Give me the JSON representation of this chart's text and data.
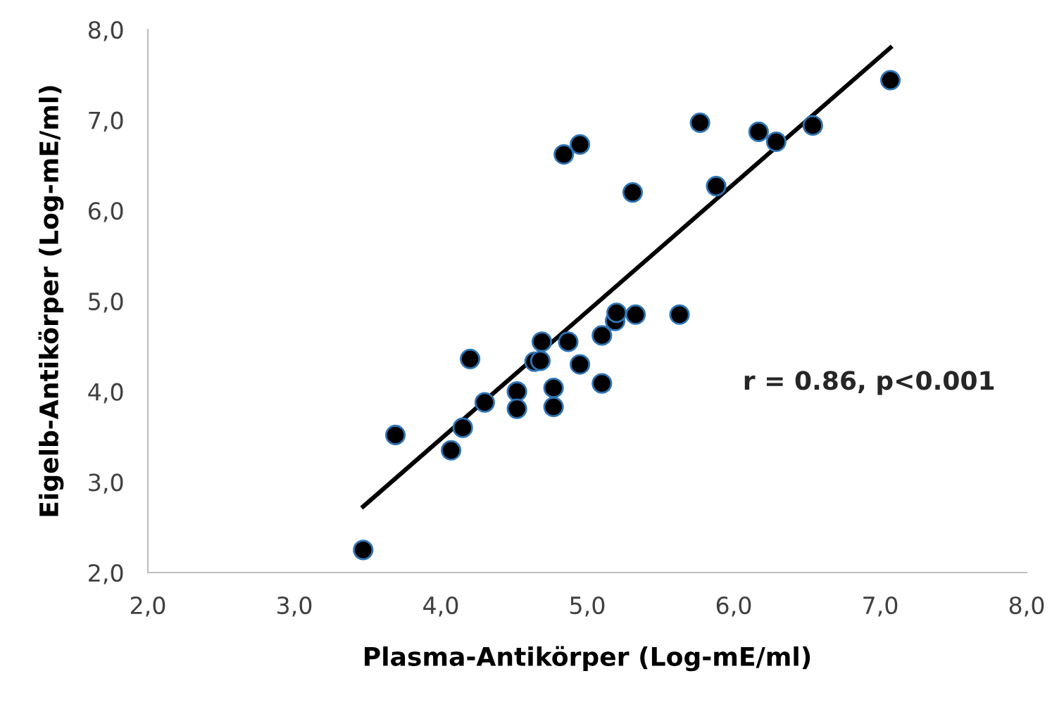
{
  "chart_data": {
    "type": "scatter",
    "xlabel": "Plasma-Antikörper (Log-mE/ml)",
    "ylabel": "Eigelb-Antikörper (Log-mE/ml)",
    "xlim": [
      2.0,
      8.0
    ],
    "ylim": [
      2.0,
      8.0
    ],
    "xticks": [
      {
        "value": 2,
        "label": "2,0"
      },
      {
        "value": 3,
        "label": "3,0"
      },
      {
        "value": 4,
        "label": "4,0"
      },
      {
        "value": 5,
        "label": "5,0"
      },
      {
        "value": 6,
        "label": "6,0"
      },
      {
        "value": 7,
        "label": "7,0"
      },
      {
        "value": 8,
        "label": "8,0"
      }
    ],
    "yticks": [
      {
        "value": 2,
        "label": "2,0"
      },
      {
        "value": 3,
        "label": "3,0"
      },
      {
        "value": 4,
        "label": "4,0"
      },
      {
        "value": 5,
        "label": "5,0"
      },
      {
        "value": 6,
        "label": "6,0"
      },
      {
        "value": 7,
        "label": "7,0"
      },
      {
        "value": 8,
        "label": "8,0"
      }
    ],
    "grid": false,
    "legend": false,
    "marker": "circle",
    "annotations": [
      "r = 0.86, p<0.001"
    ],
    "series": [
      {
        "color": "#000000",
        "x": [
          3.47,
          3.69,
          4.07,
          4.15,
          4.2,
          4.3,
          4.52,
          4.52,
          4.64,
          4.69,
          4.68,
          4.77,
          4.77,
          4.87,
          4.95,
          5.1,
          5.1,
          5.19,
          5.2,
          5.33,
          5.63,
          5.77,
          6.17,
          6.29,
          6.54,
          7.07,
          5.88,
          4.84,
          4.95,
          5.31
        ],
        "values": [
          2.25,
          3.52,
          3.35,
          3.6,
          4.36,
          3.88,
          4.0,
          3.81,
          4.33,
          4.55,
          4.34,
          4.04,
          3.83,
          4.55,
          4.3,
          4.62,
          4.09,
          4.78,
          4.87,
          4.85,
          4.85,
          6.97,
          6.87,
          6.76,
          6.94,
          7.44,
          6.27,
          6.62,
          6.73,
          6.2
        ]
      },
      {
        "type": "line",
        "color": "#000000",
        "marker": "none",
        "line_style": "solid",
        "x": [
          3.47,
          7.07
        ],
        "values": [
          2.73,
          7.8
        ]
      }
    ]
  }
}
